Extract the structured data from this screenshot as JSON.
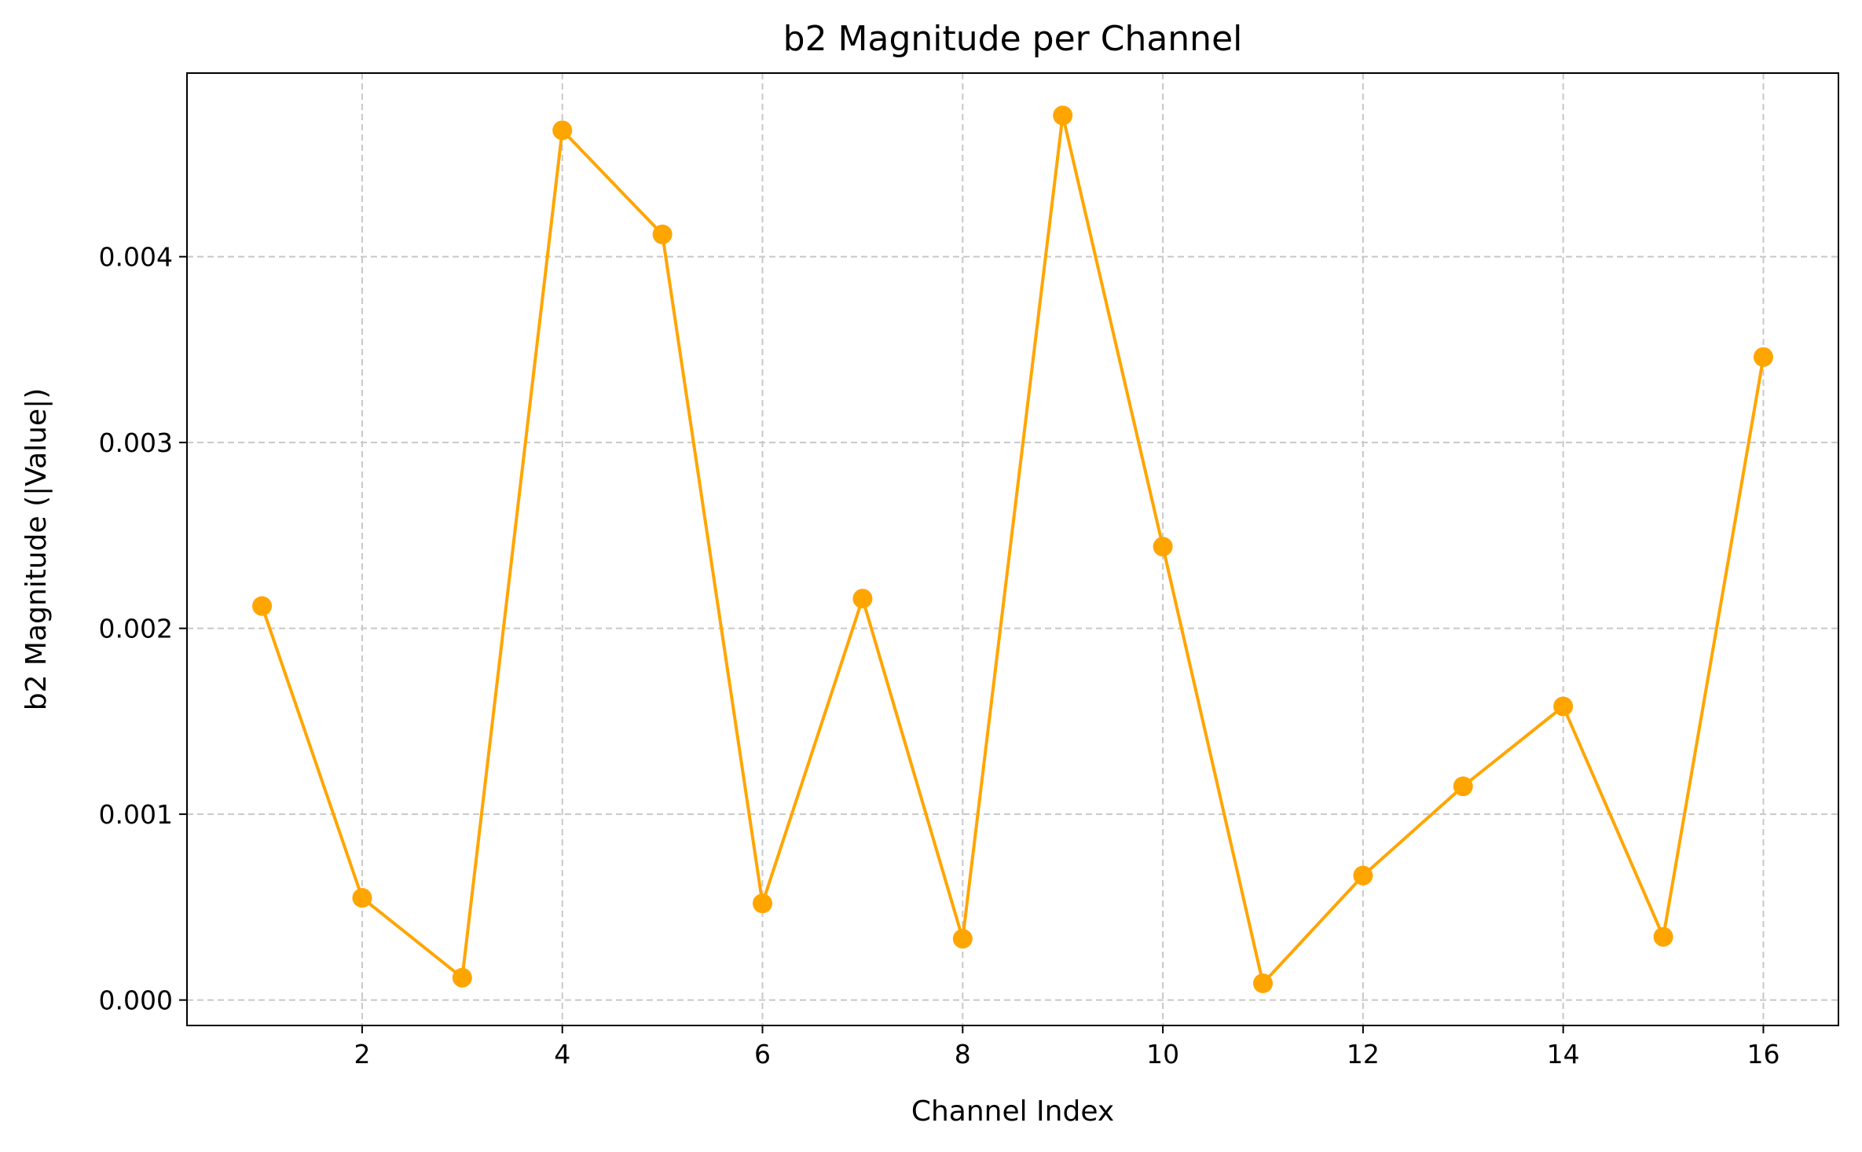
{
  "chart_data": {
    "type": "line",
    "title": "b2 Magnitude per Channel",
    "xlabel": "Channel Index",
    "ylabel": "b2 Magnitude (|Value|)",
    "xlim": [
      0.25,
      16.75
    ],
    "ylim": [
      -0.000137,
      0.004988
    ],
    "x_ticks": [
      2,
      4,
      6,
      8,
      10,
      12,
      14,
      16
    ],
    "x_tick_labels": [
      "2",
      "4",
      "6",
      "8",
      "10",
      "12",
      "14",
      "16"
    ],
    "y_ticks": [
      0.0,
      0.001,
      0.002,
      0.003,
      0.004
    ],
    "y_tick_labels": [
      "0.000",
      "0.001",
      "0.002",
      "0.003",
      "0.004"
    ],
    "grid": true,
    "legend": false,
    "series": [
      {
        "color": "#ffa500",
        "marker": "circle",
        "x": [
          1,
          2,
          3,
          4,
          5,
          6,
          7,
          8,
          9,
          10,
          11,
          12,
          13,
          14,
          15,
          16
        ],
        "y": [
          0.00212,
          0.00055,
          0.00012,
          0.00468,
          0.00412,
          0.00052,
          0.00216,
          0.00033,
          0.00476,
          0.00244,
          9e-05,
          0.00067,
          0.00115,
          0.00158,
          0.00034,
          0.00346
        ]
      }
    ]
  }
}
